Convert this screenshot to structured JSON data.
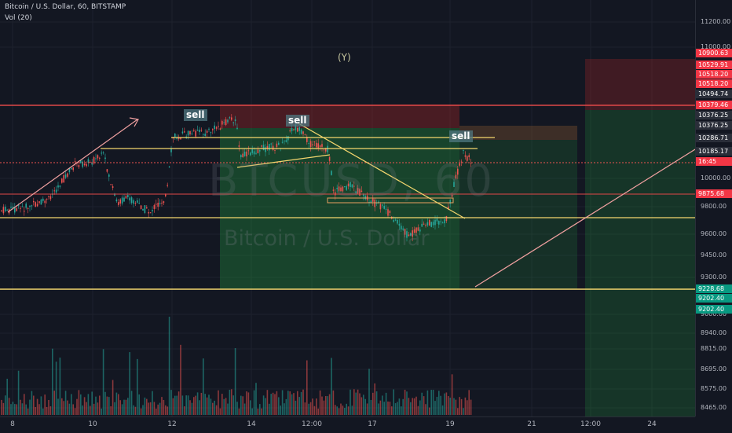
{
  "header": {
    "symbol_line": "Bitcoin / U.S. Dollar, 60, BITSTAMP",
    "volume_line": "Vol (20)"
  },
  "watermark": {
    "ticker": "BTCUSD, 60",
    "name": "Bitcoin / U.S. Dollar"
  },
  "annotations": {
    "y_label": "(Y)",
    "sell_labels": [
      "sell",
      "sell",
      "sell"
    ]
  },
  "price_axis": {
    "ticks": [
      "11200.00",
      "11000.00",
      "10000.00",
      "9800.00",
      "9600.00",
      "9450.00",
      "9300.00",
      "9000.00",
      "8940.00",
      "8815.00",
      "8695.00",
      "8575.00",
      "8465.00"
    ],
    "badges": [
      {
        "text": "10900.63",
        "color": "#f23645"
      },
      {
        "text": "10529.91",
        "color": "#f23645"
      },
      {
        "text": "10518.20",
        "color": "#f23645"
      },
      {
        "text": "10518.20",
        "color": "#f23645"
      },
      {
        "text": "10494.74",
        "color": "#2a2e39"
      },
      {
        "text": "10379.46",
        "color": "#f23645"
      },
      {
        "text": "10376.25",
        "color": "#2a2e39"
      },
      {
        "text": "10376.25",
        "color": "#2a2e39"
      },
      {
        "text": "10286.71",
        "color": "#2a2e39"
      },
      {
        "text": "10185.17",
        "color": "#2a2e39"
      },
      {
        "text": "16:45",
        "color": "#f23645"
      },
      {
        "text": "9875.68",
        "color": "#f23645"
      },
      {
        "text": "9228.68",
        "color": "#089981"
      },
      {
        "text": "9202.40",
        "color": "#089981"
      },
      {
        "text": "9202.40",
        "color": "#089981"
      }
    ]
  },
  "time_axis": {
    "labels": [
      "8",
      "10",
      "12",
      "14",
      "12:00",
      "17",
      "19",
      "21",
      "12:00",
      "24"
    ]
  },
  "colors": {
    "background": "#131722",
    "up": "#26a69a",
    "down": "#ef5350",
    "trend_line": "#f5d76e",
    "red_line": "#e04848"
  }
}
